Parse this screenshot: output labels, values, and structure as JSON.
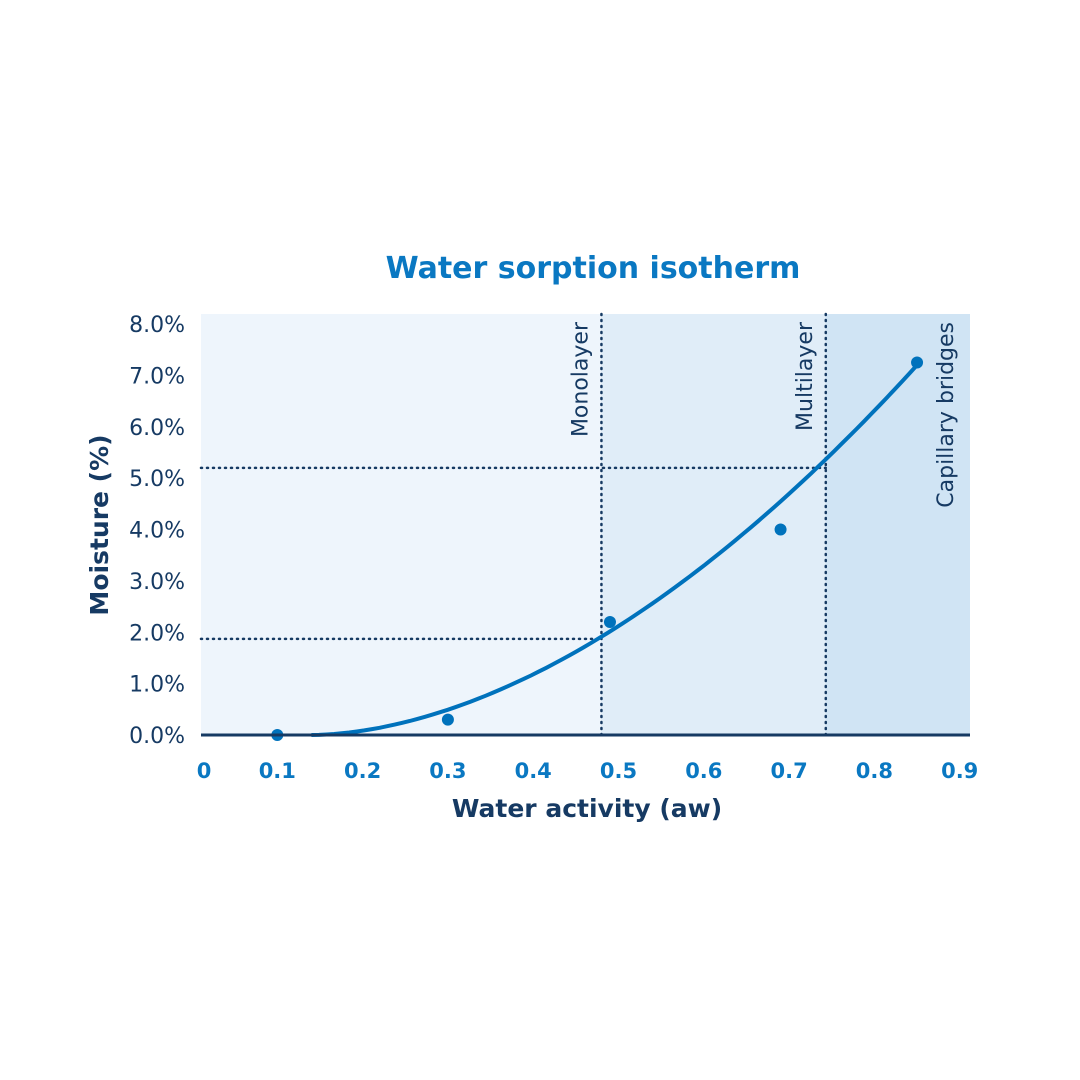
{
  "chart_data": {
    "type": "scatter",
    "title": "Water sorption isotherm",
    "xlabel": "Water activity (aw)",
    "ylabel": "Moisture (%)",
    "xlim": [
      0,
      0.9
    ],
    "ylim": [
      0,
      8
    ],
    "x_ticks": [
      "0",
      "0.1",
      "0.2",
      "0.3",
      "0.4",
      "0.5",
      "0.6",
      "0.7",
      "0.8",
      "0.9"
    ],
    "y_ticks": [
      "0.0%",
      "1.0%",
      "2.0%",
      "3.0%",
      "4.0%",
      "5.0%",
      "6.0%",
      "7.0%",
      "8.0%"
    ],
    "points": [
      {
        "x": 0.1,
        "y": 0.0
      },
      {
        "x": 0.3,
        "y": 0.3
      },
      {
        "x": 0.49,
        "y": 2.2
      },
      {
        "x": 0.69,
        "y": 4.0
      },
      {
        "x": 0.85,
        "y": 7.25
      }
    ],
    "fit_curve": {
      "x_start": 0.14,
      "x_end": 0.85,
      "y_end": 7.2
    },
    "regions": [
      {
        "label": "Monolayer",
        "x_from": 0,
        "x_to": 0.48,
        "color": "#eef5fc"
      },
      {
        "label": "Multilayer",
        "x_from": 0.48,
        "x_to": 0.743,
        "color": "#e0edf8"
      },
      {
        "label": "Capillary bridges",
        "x_from": 0.743,
        "x_to": 0.9,
        "color": "#d0e4f4"
      }
    ],
    "reference_lines": [
      {
        "x": 0.48,
        "y": 1.87
      },
      {
        "x": 0.743,
        "y": 5.2
      }
    ],
    "grid": false,
    "colors": {
      "accent": "#0072bc",
      "dark": "#163a63",
      "tick_x": "#0a78c2"
    }
  }
}
